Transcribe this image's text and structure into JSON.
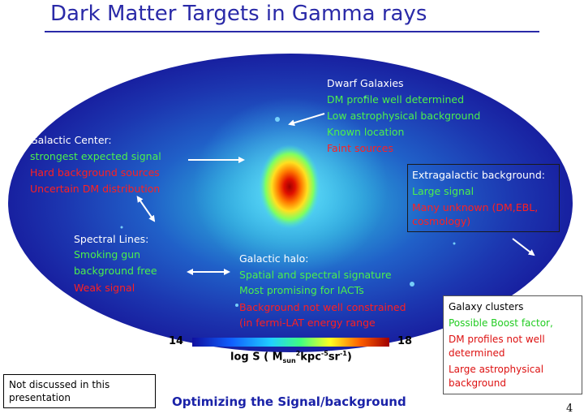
{
  "title": "Dark Matter Targets in Gamma rays",
  "colors": {
    "title": "#2a2aa8",
    "green_text": "#4cf04c",
    "red_text": "#ff2020"
  },
  "galactic_center": {
    "heading": "Galactic Center:",
    "lines": [
      "strongest expected signal",
      "Hard background sources",
      "Uncertain DM distribution"
    ]
  },
  "dwarf_galaxies": {
    "heading": "Dwarf Galaxies",
    "lines": [
      "DM profile well determined",
      "Low astrophysical background",
      "Known location",
      "Faint sources"
    ]
  },
  "extragalactic": {
    "heading": "Extragalactic background:",
    "lines": [
      "Large signal",
      "Many unknown (DM,EBL,",
      "cosmology)"
    ]
  },
  "spectral_lines": {
    "heading": "Spectral Lines:",
    "lines": [
      "Smoking gun",
      "background free",
      "Weak signal"
    ]
  },
  "galactic_halo": {
    "heading": "Galactic halo:",
    "lines": [
      "Spatial and spectral signature",
      "Most promising for IACTs",
      "Background not well constrained",
      "(in fermi-LAT energy range"
    ]
  },
  "galaxy_clusters": {
    "heading": "Galaxy clusters",
    "lines": [
      "Possible Boost factor,",
      "DM profiles not well",
      "determined",
      "Large astrophysical",
      "background"
    ]
  },
  "colorbar": {
    "min": "14",
    "max": "18",
    "label_prefix": "log S  ( M",
    "label_sub": "sun",
    "label_sup1": "2",
    "label_mid": "kpc",
    "label_sup2": "-5",
    "label_tail": "sr",
    "label_sup3": "-1",
    "label_end": ")"
  },
  "not_discussed": [
    "Not discussed in this",
    "presentation"
  ],
  "footer": "Optimizing the Signal/background",
  "page_number": "4"
}
